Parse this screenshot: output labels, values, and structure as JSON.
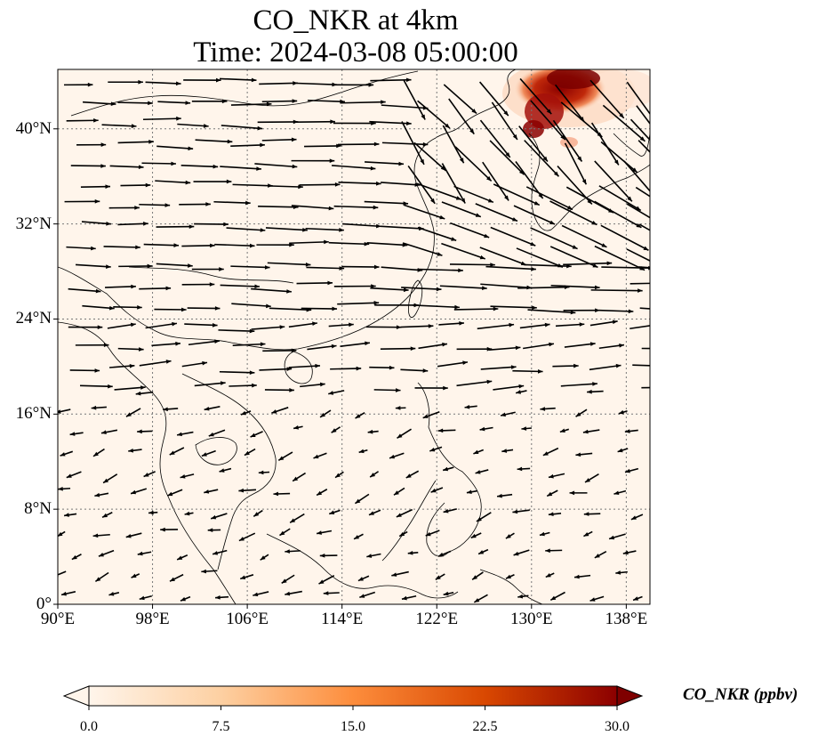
{
  "title": {
    "line1": "CO_NKR at 4km",
    "line2": "Time: 2024-03-08 05:00:00"
  },
  "map": {
    "lon_range": [
      90,
      140
    ],
    "lat_range": [
      0,
      45
    ],
    "x_ticks": [
      "90°E",
      "98°E",
      "106°E",
      "114°E",
      "122°E",
      "130°E",
      "138°E"
    ],
    "x_tick_values": [
      90,
      98,
      106,
      114,
      122,
      130,
      138
    ],
    "y_ticks": [
      "0°",
      "8°N",
      "16°N",
      "24°N",
      "32°N",
      "40°N"
    ],
    "y_tick_values": [
      0,
      8,
      16,
      24,
      32,
      40
    ],
    "gridlines": true,
    "field_color_low": "#fff5eb",
    "plume_color": "#8b0000"
  },
  "colorbar": {
    "label": "CO_NKR (ppbv)",
    "ticks": [
      "0.0",
      "7.5",
      "15.0",
      "22.5",
      "30.0"
    ],
    "tick_values": [
      0,
      7.5,
      15,
      22.5,
      30
    ],
    "range": [
      0,
      30
    ],
    "extend": "both",
    "colors": [
      "#fff5eb",
      "#fdd0a2",
      "#fd8d3c",
      "#d94801",
      "#8c0000",
      "#7f0000"
    ]
  }
}
